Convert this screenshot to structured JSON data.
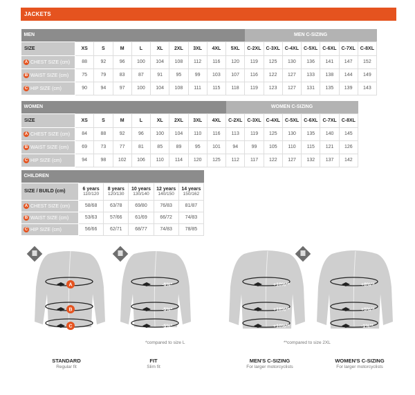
{
  "title": "JACKETS",
  "men": {
    "section": "MEN",
    "c_section": "MEN C-SIZING",
    "size_label": "SIZE",
    "sizes": [
      "XS",
      "S",
      "M",
      "L",
      "XL",
      "2XL",
      "3XL",
      "4XL",
      "5XL",
      "C-2XL",
      "C-3XL",
      "C-4XL",
      "C-5XL",
      "C-6XL",
      "C-7XL",
      "C-8XL"
    ],
    "rows": [
      {
        "badge": "A",
        "label": "CHEST SIZE (cm)",
        "values": [
          "88",
          "92",
          "96",
          "100",
          "104",
          "108",
          "112",
          "116",
          "120",
          "119",
          "125",
          "130",
          "136",
          "141",
          "147",
          "152"
        ]
      },
      {
        "badge": "B",
        "label": "WAIST SIZE (cm)",
        "values": [
          "75",
          "79",
          "83",
          "87",
          "91",
          "95",
          "99",
          "103",
          "107",
          "116",
          "122",
          "127",
          "133",
          "138",
          "144",
          "149"
        ]
      },
      {
        "badge": "C",
        "label": "HIP SIZE (cm)",
        "values": [
          "90",
          "94",
          "97",
          "100",
          "104",
          "108",
          "111",
          "115",
          "118",
          "119",
          "123",
          "127",
          "131",
          "135",
          "139",
          "143"
        ]
      }
    ]
  },
  "women": {
    "section": "WOMEN",
    "c_section": "WOMEN C-SIZING",
    "size_label": "SIZE",
    "sizes": [
      "XS",
      "S",
      "M",
      "L",
      "XL",
      "2XL",
      "3XL",
      "4XL",
      "C-2XL",
      "C-3XL",
      "C-4XL",
      "C-5XL",
      "C-6XL",
      "C-7XL",
      "C-8XL"
    ],
    "rows": [
      {
        "badge": "A",
        "label": "CHEST SIZE (cm)",
        "values": [
          "84",
          "88",
          "92",
          "96",
          "100",
          "104",
          "110",
          "116",
          "113",
          "119",
          "125",
          "130",
          "135",
          "140",
          "145"
        ]
      },
      {
        "badge": "B",
        "label": "WAIST SIZE (cm)",
        "values": [
          "69",
          "73",
          "77",
          "81",
          "85",
          "89",
          "95",
          "101",
          "94",
          "99",
          "105",
          "110",
          "115",
          "121",
          "126"
        ]
      },
      {
        "badge": "C",
        "label": "HIP SIZE (cm)",
        "values": [
          "94",
          "98",
          "102",
          "106",
          "110",
          "114",
          "120",
          "125",
          "112",
          "117",
          "122",
          "127",
          "132",
          "137",
          "142"
        ]
      }
    ]
  },
  "children": {
    "section": "CHILDREN",
    "size_label": "SIZE / BUILD (cm)",
    "sizes": [
      {
        "age": "6 years",
        "build": "110/120"
      },
      {
        "age": "8 years",
        "build": "120/130"
      },
      {
        "age": "10 years",
        "build": "130/140"
      },
      {
        "age": "12 years",
        "build": "140/150"
      },
      {
        "age": "14 years",
        "build": "150/162"
      }
    ],
    "rows": [
      {
        "badge": "A",
        "label": "CHEST SIZE (cm)",
        "values": [
          "58/68",
          "63/78",
          "69/80",
          "76/83",
          "81/87"
        ]
      },
      {
        "badge": "B",
        "label": "WAIST SIZE (cm)",
        "values": [
          "53/63",
          "57/66",
          "61/69",
          "66/72",
          "74/83"
        ]
      },
      {
        "badge": "C",
        "label": "HIP SIZE (cm)",
        "values": [
          "56/66",
          "62/71",
          "68/77",
          "74/83",
          "78/85"
        ]
      }
    ]
  },
  "fits": [
    {
      "name": "STANDARD",
      "desc": "Regular fit",
      "marks": [
        "A",
        "B",
        "C"
      ],
      "icon": "regular-fit-icon"
    },
    {
      "name": "FIT",
      "desc": "Slim fit",
      "marks": [
        "-6%*",
        "-5%*",
        "-5%*"
      ],
      "icon": "slim-fit-icon"
    },
    {
      "name": "MEN'S C-SIZING",
      "desc": "For larger motorcyclists",
      "marks": [
        "+10%**",
        "+18%**",
        "+10%**"
      ]
    },
    {
      "name": "WOMEN'S C-SIZING",
      "desc": "For larger motorcyclists",
      "marks": [
        "+8%**",
        "+5%**",
        "-1%**"
      ],
      "icon": "c-sizing-icon"
    }
  ],
  "notes": {
    "fit": "*compared to size L",
    "c": "**compared to size 2XL"
  },
  "colors": {
    "accent": "#e5531f",
    "header": "#8c8c8c",
    "c_header": "#b3b3b3",
    "jacket": "#cfcfcf"
  }
}
